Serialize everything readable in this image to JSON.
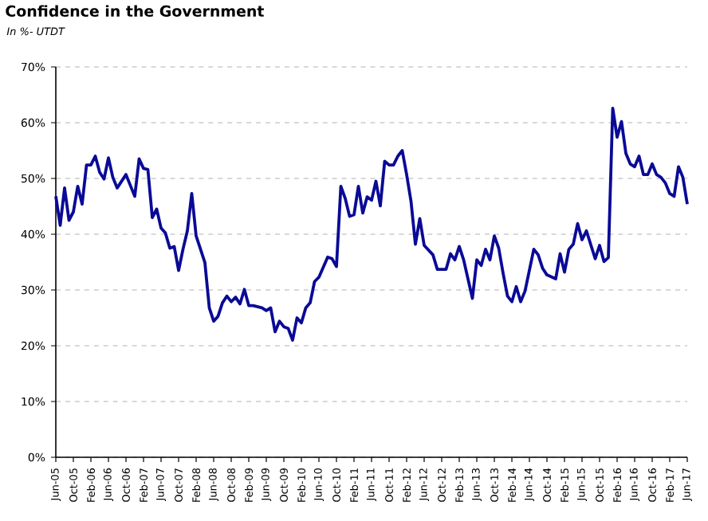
{
  "chart_data": {
    "type": "line",
    "title": "Confidence in the Government",
    "subtitle": "In %- UTDT",
    "x": [
      "2005-06",
      "2005-07",
      "2005-08",
      "2005-09",
      "2005-10",
      "2005-11",
      "2005-12",
      "2006-01",
      "2006-02",
      "2006-03",
      "2006-04",
      "2006-05",
      "2006-06",
      "2006-07",
      "2006-08",
      "2006-10",
      "2006-12",
      "2007-01",
      "2007-02",
      "2007-03",
      "2007-04",
      "2007-05",
      "2007-06",
      "2007-07",
      "2007-08",
      "2007-09",
      "2007-10",
      "2007-11",
      "2007-12",
      "2008-01",
      "2008-02",
      "2008-04",
      "2008-05",
      "2008-06",
      "2008-07",
      "2008-08",
      "2008-09",
      "2008-10",
      "2008-11",
      "2008-12",
      "2009-01",
      "2009-02",
      "2009-03",
      "2009-05",
      "2009-06",
      "2009-07",
      "2009-08",
      "2009-09",
      "2009-10",
      "2009-11",
      "2009-12",
      "2010-01",
      "2010-02",
      "2010-03",
      "2010-04",
      "2010-05",
      "2010-06",
      "2010-08",
      "2010-09",
      "2010-10",
      "2010-11",
      "2010-12",
      "2011-01",
      "2011-02",
      "2011-03",
      "2011-04",
      "2011-05",
      "2011-06",
      "2011-07",
      "2011-08",
      "2011-09",
      "2011-10",
      "2011-11",
      "2011-12",
      "2012-01",
      "2012-02",
      "2012-03",
      "2012-04",
      "2012-05",
      "2012-06",
      "2012-08",
      "2012-09",
      "2012-11",
      "2012-12",
      "2013-01",
      "2013-02",
      "2013-03",
      "2013-05",
      "2013-06",
      "2013-07",
      "2013-08",
      "2013-09",
      "2013-10",
      "2013-11",
      "2013-12",
      "2014-01",
      "2014-02",
      "2014-03",
      "2014-04",
      "2014-05",
      "2014-07",
      "2014-08",
      "2014-09",
      "2014-10",
      "2014-12",
      "2015-01",
      "2015-02",
      "2015-03",
      "2015-04",
      "2015-05",
      "2015-06",
      "2015-07",
      "2015-09",
      "2015-10",
      "2015-11",
      "2015-12",
      "2016-01",
      "2016-02",
      "2016-03",
      "2016-04",
      "2016-05",
      "2016-06",
      "2016-07",
      "2016-08",
      "2016-09",
      "2016-10",
      "2016-11",
      "2016-12",
      "2017-01",
      "2017-02",
      "2017-03",
      "2017-04",
      "2017-05",
      "2017-06"
    ],
    "series": [
      {
        "color": "#0a0a96",
        "values": [
          46.8,
          41.6,
          48.3,
          42.5,
          44,
          48.6,
          45.4,
          52.4,
          52.4,
          54,
          51.1,
          49.9,
          53.7,
          50.2,
          48.3,
          50.7,
          46.8,
          53.5,
          51.8,
          51.6,
          43,
          44.5,
          41.1,
          40.2,
          37.5,
          37.8,
          33.5,
          37.3,
          40.6,
          47.3,
          39.7,
          34.9,
          26.8,
          24.4,
          25.3,
          27.7,
          28.9,
          27.9,
          28.7,
          27.5,
          30.1,
          27.2,
          27.2,
          26.8,
          26.3,
          26.8,
          22.5,
          24.4,
          23.4,
          23.1,
          21,
          25,
          24.1,
          26.8,
          27.7,
          31.5,
          32.3,
          35.9,
          35.6,
          34.2,
          48.6,
          46.4,
          43.2,
          43.5,
          48.6,
          43.8,
          46.7,
          46.1,
          49.5,
          45.1,
          53.1,
          52.4,
          52.4,
          54,
          55,
          50.7,
          45.9,
          38.2,
          42.8,
          38,
          36.3,
          33.7,
          33.7,
          36.5,
          35.4,
          37.8,
          35.4,
          28.5,
          35.4,
          34.4,
          37.3,
          35.4,
          39.7,
          37.5,
          33,
          28.9,
          27.9,
          30.6,
          27.9,
          29.8,
          37.3,
          36.3,
          33.9,
          32.7,
          32,
          36.5,
          33.2,
          37.3,
          38.2,
          41.9,
          39,
          40.6,
          35.6,
          38,
          35.1,
          35.8,
          62.6,
          57.4,
          60.2,
          54.5,
          52.6,
          52.1,
          54,
          50.7,
          50.7,
          52.6,
          50.7,
          50.2,
          49.2,
          47.3,
          46.8,
          52.1,
          50.2,
          45.4
        ]
      }
    ],
    "xlim": [
      "2005-06",
      "2017-06"
    ],
    "xticks": [
      {
        "value": "2005-06",
        "label": "Jun-05"
      },
      {
        "value": "2005-10",
        "label": "Oct-05"
      },
      {
        "value": "2006-02",
        "label": "Feb-06"
      },
      {
        "value": "2006-06",
        "label": "Jun-06"
      },
      {
        "value": "2006-10",
        "label": "Oct-06"
      },
      {
        "value": "2007-02",
        "label": "Feb-07"
      },
      {
        "value": "2007-06",
        "label": "Jun-07"
      },
      {
        "value": "2007-10",
        "label": "Oct-07"
      },
      {
        "value": "2008-02",
        "label": "Feb-08"
      },
      {
        "value": "2008-06",
        "label": "Jun-08"
      },
      {
        "value": "2008-10",
        "label": "Oct-08"
      },
      {
        "value": "2009-02",
        "label": "Feb-09"
      },
      {
        "value": "2009-06",
        "label": "Jun-09"
      },
      {
        "value": "2009-10",
        "label": "Oct-09"
      },
      {
        "value": "2010-02",
        "label": "Feb-10"
      },
      {
        "value": "2010-06",
        "label": "Jun-10"
      },
      {
        "value": "2010-10",
        "label": "Oct-10"
      },
      {
        "value": "2011-02",
        "label": "Feb-11"
      },
      {
        "value": "2011-06",
        "label": "Jun-11"
      },
      {
        "value": "2011-10",
        "label": "Oct-11"
      },
      {
        "value": "2012-02",
        "label": "Feb-12"
      },
      {
        "value": "2012-06",
        "label": "Jun-12"
      },
      {
        "value": "2012-10",
        "label": "Oct-12"
      },
      {
        "value": "2013-02",
        "label": "Feb-13"
      },
      {
        "value": "2013-06",
        "label": "Jun-13"
      },
      {
        "value": "2013-10",
        "label": "Oct-13"
      },
      {
        "value": "2014-02",
        "label": "Feb-14"
      },
      {
        "value": "2014-06",
        "label": "Jun-14"
      },
      {
        "value": "2014-10",
        "label": "Oct-14"
      },
      {
        "value": "2015-02",
        "label": "Feb-15"
      },
      {
        "value": "2015-06",
        "label": "Jun-15"
      },
      {
        "value": "2015-10",
        "label": "Oct-15"
      },
      {
        "value": "2016-02",
        "label": "Feb-16"
      },
      {
        "value": "2016-06",
        "label": "Jun-16"
      },
      {
        "value": "2016-10",
        "label": "Oct-16"
      },
      {
        "value": "2017-02",
        "label": "Feb-17"
      },
      {
        "value": "2017-06",
        "label": "Jun-17"
      }
    ],
    "ylim": [
      0,
      70
    ],
    "yticks": [
      {
        "value": 0,
        "label": "0%"
      },
      {
        "value": 10,
        "label": "10%"
      },
      {
        "value": 20,
        "label": "20%"
      },
      {
        "value": 30,
        "label": "30%"
      },
      {
        "value": 40,
        "label": "40%"
      },
      {
        "value": 50,
        "label": "50%"
      },
      {
        "value": 60,
        "label": "60%"
      },
      {
        "value": 70,
        "label": "70%"
      }
    ],
    "grid": "y",
    "line_style": "solid"
  }
}
